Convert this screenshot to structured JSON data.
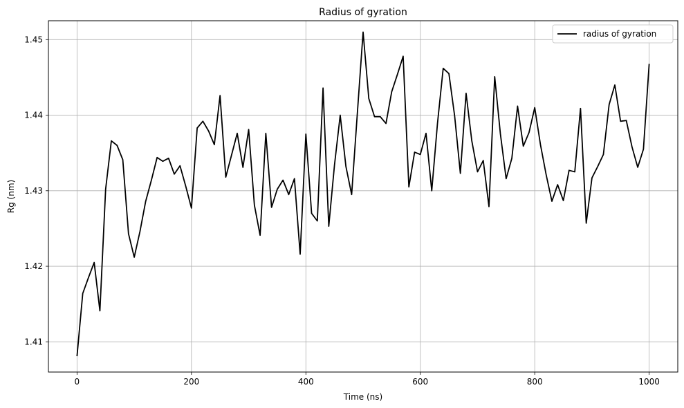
{
  "chart_data": {
    "type": "line",
    "title": "Radius of gyration",
    "xlabel": "Time (ns)",
    "ylabel": "Rg (nm)",
    "xlim": [
      -50,
      1050
    ],
    "ylim": [
      1.406,
      1.4525
    ],
    "xticks": [
      0,
      200,
      400,
      600,
      800,
      1000
    ],
    "xtick_labels": [
      "0",
      "200",
      "400",
      "600",
      "800",
      "1000"
    ],
    "yticks": [
      1.41,
      1.42,
      1.43,
      1.44,
      1.45
    ],
    "ytick_labels": [
      "1.41",
      "1.42",
      "1.43",
      "1.44",
      "1.45"
    ],
    "grid": true,
    "legend_position": "top-right",
    "series": [
      {
        "name": "radius of gyration",
        "color": "#000000",
        "x": [
          0,
          10,
          20,
          30,
          40,
          50,
          60,
          70,
          80,
          90,
          100,
          110,
          120,
          130,
          140,
          150,
          160,
          170,
          180,
          190,
          200,
          210,
          220,
          230,
          240,
          250,
          260,
          270,
          280,
          290,
          300,
          310,
          320,
          330,
          340,
          350,
          360,
          370,
          380,
          390,
          400,
          410,
          420,
          430,
          440,
          450,
          460,
          470,
          480,
          490,
          500,
          510,
          520,
          530,
          540,
          550,
          560,
          570,
          580,
          590,
          600,
          610,
          620,
          630,
          640,
          650,
          660,
          670,
          680,
          690,
          700,
          710,
          720,
          730,
          740,
          750,
          760,
          770,
          780,
          790,
          800,
          810,
          820,
          830,
          840,
          850,
          860,
          870,
          880,
          890,
          900,
          910,
          920,
          930,
          940,
          950,
          960,
          970,
          980,
          990,
          1000
        ],
        "y": [
          1.4081,
          1.4164,
          1.4185,
          1.4205,
          1.4141,
          1.4302,
          1.4366,
          1.436,
          1.4341,
          1.4243,
          1.4212,
          1.4246,
          1.4286,
          1.4314,
          1.4344,
          1.4339,
          1.4343,
          1.4322,
          1.4333,
          1.4306,
          1.4277,
          1.4383,
          1.4392,
          1.4379,
          1.4361,
          1.4426,
          1.4318,
          1.4347,
          1.4376,
          1.4331,
          1.4381,
          1.4281,
          1.4241,
          1.4376,
          1.4278,
          1.4302,
          1.4314,
          1.4295,
          1.4316,
          1.4216,
          1.4375,
          1.427,
          1.426,
          1.4436,
          1.4253,
          1.4334,
          1.44,
          1.4332,
          1.4295,
          1.4403,
          1.451,
          1.4422,
          1.4398,
          1.4398,
          1.4389,
          1.4431,
          1.4454,
          1.4478,
          1.4305,
          1.4351,
          1.4348,
          1.4376,
          1.43,
          1.4389,
          1.4462,
          1.4455,
          1.4399,
          1.4323,
          1.4429,
          1.4366,
          1.4325,
          1.434,
          1.4279,
          1.4451,
          1.4375,
          1.4316,
          1.4343,
          1.4412,
          1.4359,
          1.4377,
          1.441,
          1.4361,
          1.4321,
          1.4286,
          1.4308,
          1.4287,
          1.4327,
          1.4325,
          1.4409,
          1.4257,
          1.4317,
          1.4332,
          1.4348,
          1.4414,
          1.444,
          1.4392,
          1.4393,
          1.4358,
          1.4331,
          1.4355,
          1.4468
        ]
      }
    ]
  }
}
